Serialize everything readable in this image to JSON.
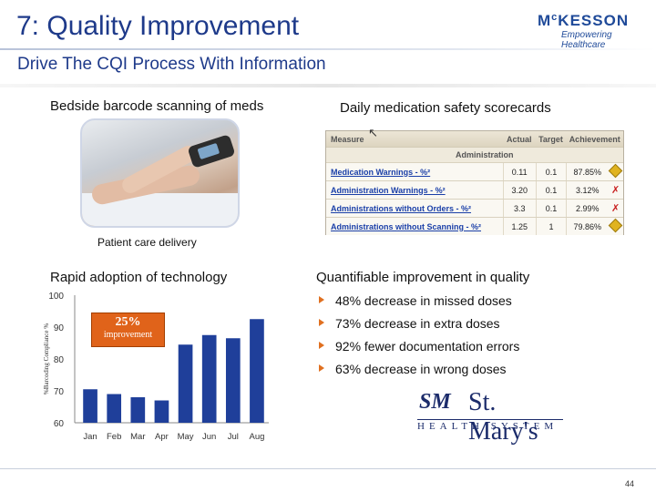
{
  "header": {
    "title": "7: Quality Improvement",
    "subtitle": "Drive The CQI Process With Information"
  },
  "logo": {
    "name_prefix": "M",
    "name_small": "c",
    "name_rest": "KESSON",
    "tagline": "Empowering Healthcare",
    "color": "#1f4a99"
  },
  "left_top": {
    "heading": "Bedside barcode scanning of meds",
    "photo_caption": "Patient care delivery"
  },
  "right_top": {
    "heading": "Daily medication safety scorecards",
    "scorecard": {
      "columns": [
        "Measure",
        "Actual",
        "Target",
        "Achievement"
      ],
      "subheader": "Administration",
      "rows": [
        {
          "measure": "Medication Warnings - %²",
          "actual": "0.11",
          "target": "0.1",
          "achievement": "87.85%",
          "flag": "warning"
        },
        {
          "measure": "Administration Warnings - %²",
          "actual": "3.20",
          "target": "0.1",
          "achievement": "3.12%",
          "flag": "fail"
        },
        {
          "measure": "Administrations without Orders - %²",
          "actual": "3.3",
          "target": "0.1",
          "achievement": "2.99%",
          "flag": "fail"
        },
        {
          "measure": "Administrations without Scanning - %²",
          "actual": "1.25",
          "target": "1",
          "achievement": "79.86%",
          "flag": "warning"
        }
      ]
    }
  },
  "left_bottom": {
    "heading": "Rapid adoption of technology",
    "callout_value": "25%",
    "callout_label": "improvement"
  },
  "chart_data": {
    "type": "bar",
    "categories": [
      "Jan",
      "Feb",
      "Mar",
      "Apr",
      "May",
      "Jun",
      "Jul",
      "Aug"
    ],
    "values": [
      70.5,
      69,
      68,
      67,
      84.5,
      87.5,
      86.5,
      92.5
    ],
    "ylabel": "%Barcoding Compliance %",
    "ylim": [
      60,
      100
    ],
    "yticks": [
      60,
      70,
      80,
      90,
      100
    ],
    "bar_color": "#1f3f9a",
    "grid": false
  },
  "right_bottom": {
    "heading": "Quantifiable improvement in quality",
    "bullets": [
      "48% decrease in missed doses",
      "73% decrease in extra doses",
      "92% fewer documentation errors",
      "63% decrease in wrong doses"
    ]
  },
  "stmarys": {
    "mark": "SM",
    "name": "St. Mary's",
    "subline": "HEALTH SYSTEM"
  },
  "footer": {
    "page_number": "44"
  }
}
